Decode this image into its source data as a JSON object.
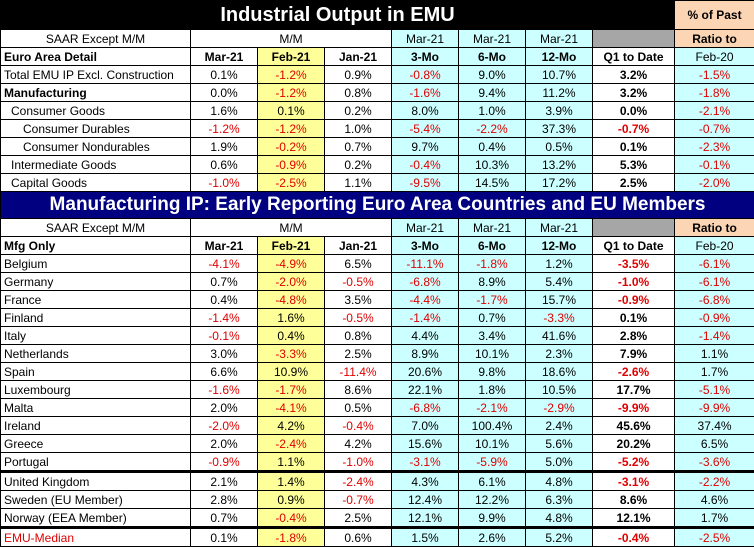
{
  "top": {
    "title": "Industrial Output in EMU",
    "corner": "% of Past",
    "saar_label": "SAAR Except M/M",
    "mm_label": "M/M",
    "ratio_label": "Ratio to",
    "area_label": "Euro Area Detail",
    "columns": [
      "Mar-21",
      "Feb-21",
      "Jan-21",
      "3-Mo",
      "6-Mo",
      "12-Mo",
      "Q1 to Date",
      "Feb-20"
    ],
    "period_heads": [
      "Mar-21",
      "Mar-21",
      "Mar-21"
    ],
    "rows": [
      {
        "label": "Total EMU IP Excl. Construction",
        "values": [
          "0.1%",
          "-1.2%",
          "0.9%",
          "-0.8%",
          "9.0%",
          "10.7%",
          "3.2%",
          "-1.5%"
        ]
      },
      {
        "label": "Manufacturing",
        "values": [
          "0.0%",
          "-1.2%",
          "0.8%",
          "-1.6%",
          "9.4%",
          "11.2%",
          "3.2%",
          "-1.8%"
        ]
      },
      {
        "label": "Consumer Goods",
        "values": [
          "1.6%",
          "0.1%",
          "0.2%",
          "8.0%",
          "1.0%",
          "3.9%",
          "0.0%",
          "-2.1%"
        ]
      },
      {
        "label": "Consumer Durables",
        "values": [
          "-1.2%",
          "-1.2%",
          "1.0%",
          "-5.4%",
          "-2.2%",
          "37.3%",
          "-0.7%",
          "-0.7%"
        ]
      },
      {
        "label": "Consumer Nondurables",
        "values": [
          "1.9%",
          "-0.2%",
          "0.7%",
          "9.7%",
          "0.4%",
          "0.5%",
          "0.1%",
          "-2.3%"
        ]
      },
      {
        "label": "Intermediate Goods",
        "values": [
          "0.6%",
          "-0.9%",
          "0.2%",
          "-0.4%",
          "10.3%",
          "13.2%",
          "5.3%",
          "-0.1%"
        ]
      },
      {
        "label": "Capital Goods",
        "values": [
          "-1.0%",
          "-2.5%",
          "1.1%",
          "-9.5%",
          "14.5%",
          "17.2%",
          "2.5%",
          "-2.0%"
        ]
      }
    ]
  },
  "bottom": {
    "title": "Manufacturing IP: Early Reporting Euro Area Countries and EU Members",
    "saar_label": "SAAR Except M/M",
    "mm_label": "M/M",
    "ratio_label": "Ratio to",
    "area_label": "Mfg Only",
    "columns": [
      "Mar-21",
      "Feb-21",
      "Jan-21",
      "3-Mo",
      "6-Mo",
      "12-Mo",
      "Q1 to Date",
      "Feb-20"
    ],
    "period_heads": [
      "Mar-21",
      "Mar-21",
      "Mar-21"
    ],
    "rows": [
      {
        "label": "Belgium",
        "values": [
          "-4.1%",
          "-4.9%",
          "6.5%",
          "-11.1%",
          "-1.8%",
          "1.2%",
          "-3.5%",
          "-6.1%"
        ]
      },
      {
        "label": "Germany",
        "values": [
          "0.7%",
          "-2.0%",
          "-0.5%",
          "-6.8%",
          "8.9%",
          "5.4%",
          "-1.0%",
          "-6.1%"
        ]
      },
      {
        "label": "France",
        "values": [
          "0.4%",
          "-4.8%",
          "3.5%",
          "-4.4%",
          "-1.7%",
          "15.7%",
          "-0.9%",
          "-6.8%"
        ]
      },
      {
        "label": "Finland",
        "values": [
          "-1.4%",
          "1.6%",
          "-0.5%",
          "-1.4%",
          "0.7%",
          "-3.3%",
          "0.1%",
          "-0.9%"
        ]
      },
      {
        "label": "Italy",
        "values": [
          "-0.1%",
          "0.4%",
          "0.8%",
          "4.4%",
          "3.4%",
          "41.6%",
          "2.8%",
          "-1.4%"
        ]
      },
      {
        "label": "Netherlands",
        "values": [
          "3.0%",
          "-3.3%",
          "2.5%",
          "8.9%",
          "10.1%",
          "2.3%",
          "7.9%",
          "1.1%"
        ]
      },
      {
        "label": "Spain",
        "values": [
          "6.6%",
          "10.9%",
          "-11.4%",
          "20.6%",
          "9.8%",
          "18.6%",
          "-2.6%",
          "1.7%"
        ]
      },
      {
        "label": "Luxembourg",
        "values": [
          "-1.6%",
          "-1.7%",
          "8.6%",
          "22.1%",
          "1.8%",
          "10.5%",
          "17.7%",
          "-5.1%"
        ]
      },
      {
        "label": "Malta",
        "values": [
          "2.0%",
          "-4.1%",
          "0.5%",
          "-6.8%",
          "-2.1%",
          "-2.9%",
          "-9.9%",
          "-9.9%"
        ]
      },
      {
        "label": "Ireland",
        "values": [
          "-2.0%",
          "4.2%",
          "-0.4%",
          "7.0%",
          "100.4%",
          "2.4%",
          "45.6%",
          "37.4%"
        ]
      },
      {
        "label": "Greece",
        "values": [
          "2.0%",
          "-2.4%",
          "4.2%",
          "15.6%",
          "10.1%",
          "5.6%",
          "20.2%",
          "6.5%"
        ]
      },
      {
        "label": "Portugal",
        "values": [
          "-0.9%",
          "1.1%",
          "-1.0%",
          "-3.1%",
          "-5.9%",
          "5.0%",
          "-5.2%",
          "-3.6%"
        ]
      },
      {
        "label": "United Kingdom",
        "values": [
          "2.1%",
          "1.4%",
          "-2.4%",
          "4.3%",
          "6.1%",
          "4.8%",
          "-3.1%",
          "-2.2%"
        ]
      },
      {
        "label": "Sweden (EU Member)",
        "values": [
          "2.8%",
          "0.9%",
          "-0.7%",
          "12.4%",
          "12.2%",
          "6.3%",
          "8.6%",
          "4.6%"
        ]
      },
      {
        "label": "Norway (EEA Member)",
        "values": [
          "0.7%",
          "-0.4%",
          "2.5%",
          "12.1%",
          "9.9%",
          "4.8%",
          "12.1%",
          "1.7%"
        ]
      },
      {
        "label": "EMU-Median",
        "values": [
          "0.1%",
          "-1.8%",
          "0.6%",
          "1.5%",
          "2.6%",
          "5.2%",
          "-0.4%",
          "-2.5%"
        ]
      }
    ]
  },
  "colors": {
    "negative": "#e00000",
    "highlight_yellow": "#ffff99",
    "highlight_cyan": "#ccffff",
    "banner_black": "#000000",
    "banner_navy": "#000080",
    "corner_peach": "#fcd5b4",
    "header_gray": "#a6a6a6"
  }
}
